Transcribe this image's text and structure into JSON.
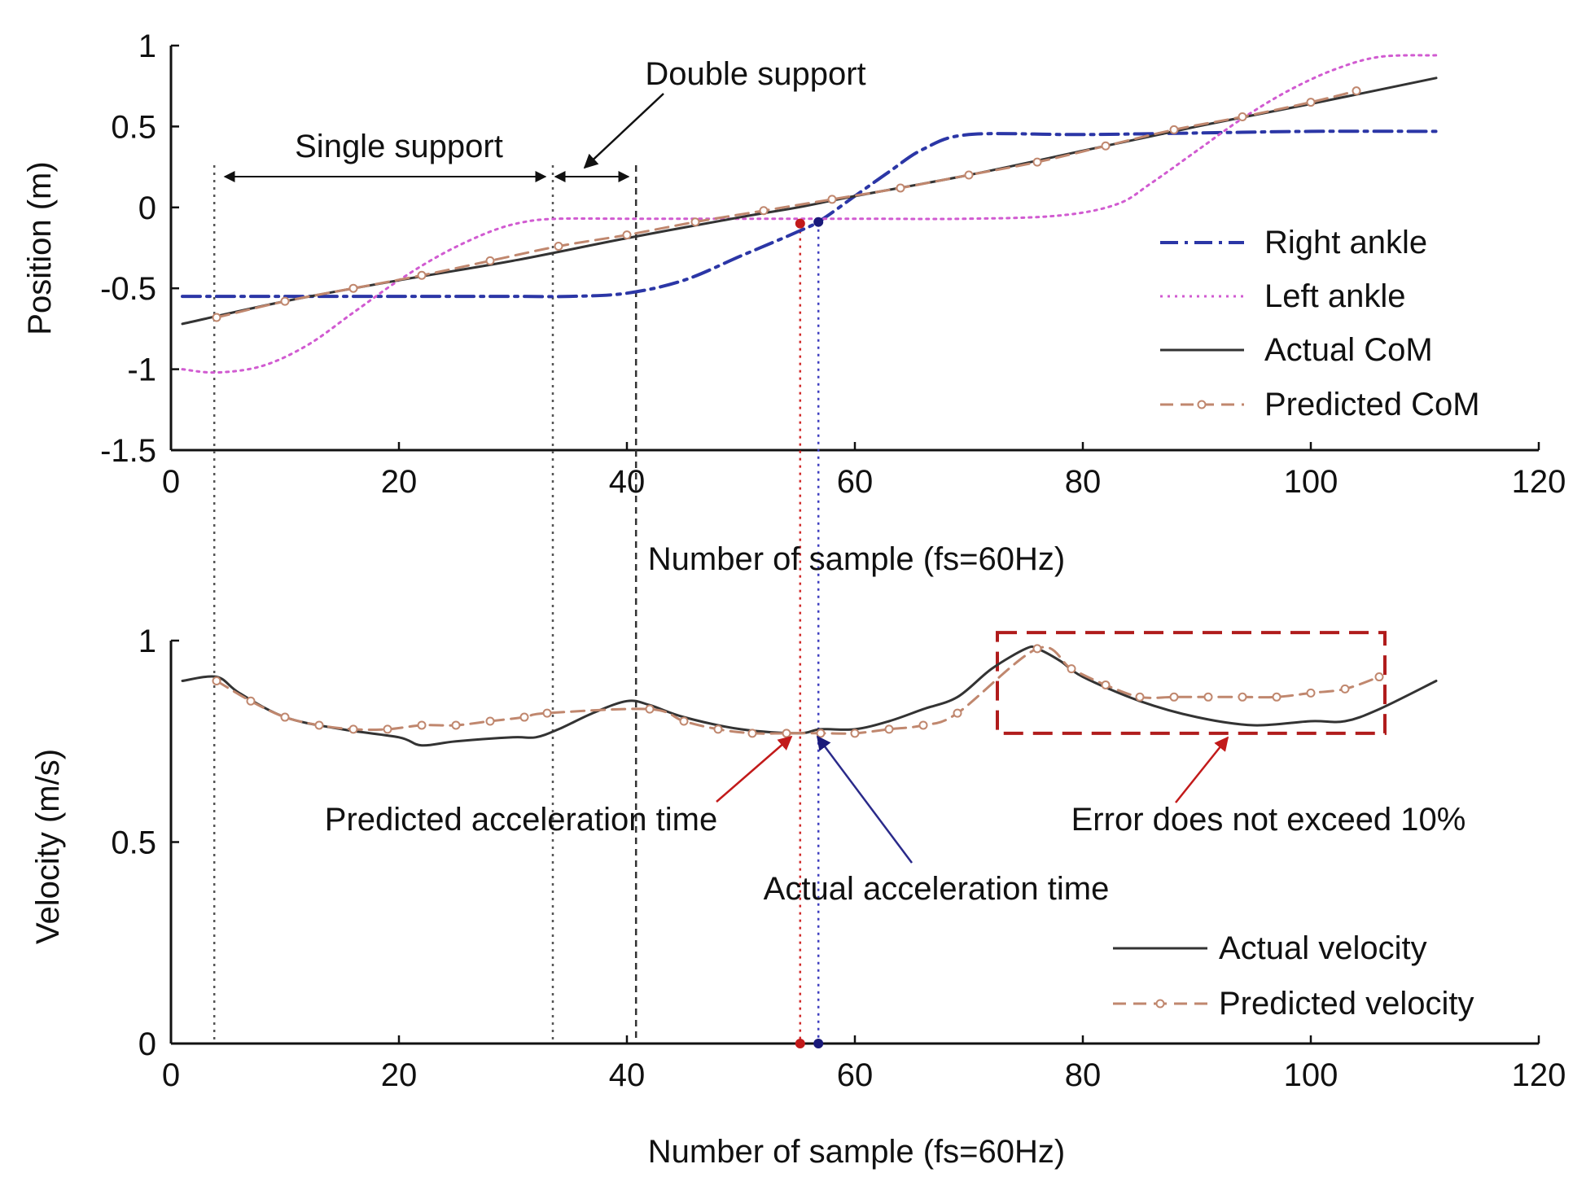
{
  "chart_data": [
    {
      "type": "line",
      "id": "position",
      "xlabel": "Number of sample (fs=60Hz)",
      "ylabel": "Position (m)",
      "xlim": [
        0,
        120
      ],
      "ylim": [
        -1.5,
        1
      ],
      "xticks": [
        "0",
        "20",
        "40",
        "60",
        "80",
        "100",
        "120"
      ],
      "yticks": [
        "1",
        "0.5",
        "0",
        "-0.5",
        "-1",
        "-1.5"
      ],
      "series": [
        {
          "name": "Right ankle",
          "style": "dashdot",
          "color": "#2b36a6",
          "x": [
            1,
            10,
            20,
            30,
            35,
            40,
            45,
            50,
            55,
            57,
            60,
            63,
            66,
            70,
            80,
            90,
            100,
            111
          ],
          "y": [
            -0.55,
            -0.55,
            -0.55,
            -0.55,
            -0.55,
            -0.53,
            -0.45,
            -0.3,
            -0.15,
            -0.08,
            0.07,
            0.22,
            0.36,
            0.45,
            0.45,
            0.46,
            0.47,
            0.47
          ]
        },
        {
          "name": "Left ankle",
          "style": "dotted",
          "color": "#d15bd1",
          "x": [
            1,
            4,
            8,
            12,
            16,
            20,
            24,
            28,
            31,
            34,
            40,
            50,
            60,
            70,
            78,
            83,
            86,
            90,
            94,
            98,
            102,
            106,
            111
          ],
          "y": [
            -1.0,
            -1.02,
            -0.98,
            -0.85,
            -0.65,
            -0.45,
            -0.28,
            -0.15,
            -0.09,
            -0.07,
            -0.07,
            -0.07,
            -0.07,
            -0.07,
            -0.05,
            0.02,
            0.15,
            0.35,
            0.55,
            0.72,
            0.85,
            0.93,
            0.94
          ]
        },
        {
          "name": "Actual CoM",
          "style": "solid",
          "color": "#333333",
          "x": [
            1,
            10,
            20,
            30,
            40,
            50,
            55,
            60,
            70,
            80,
            90,
            100,
            111
          ],
          "y": [
            -0.72,
            -0.58,
            -0.45,
            -0.33,
            -0.19,
            -0.06,
            0.0,
            0.07,
            0.2,
            0.35,
            0.5,
            0.64,
            0.8
          ]
        },
        {
          "name": "Predicted CoM",
          "style": "dashed-marker",
          "color": "#c0876e",
          "x": [
            4,
            10,
            16,
            22,
            28,
            34,
            40,
            46,
            52,
            58,
            64,
            70,
            76,
            82,
            88,
            94,
            100,
            104
          ],
          "y": [
            -0.68,
            -0.58,
            -0.5,
            -0.42,
            -0.33,
            -0.24,
            -0.17,
            -0.09,
            -0.02,
            0.05,
            0.12,
            0.2,
            0.28,
            0.38,
            0.48,
            0.56,
            0.65,
            0.72
          ]
        }
      ],
      "vlines": [
        {
          "x": 3.8,
          "color": "#555555",
          "style": "dotted",
          "extends": false
        },
        {
          "x": 33.5,
          "color": "#555555",
          "style": "dotted",
          "extends": false
        },
        {
          "x": 40.8,
          "color": "#333333",
          "style": "dashed",
          "extends": false
        },
        {
          "x": 55.2,
          "color": "#d12a2a",
          "style": "dotted",
          "extends": true
        },
        {
          "x": 56.8,
          "color": "#4040c0",
          "style": "dotted",
          "extends": true
        }
      ],
      "markers": [
        {
          "x": 55.2,
          "y": -0.1,
          "color": "#c21a1a"
        },
        {
          "x": 56.8,
          "y": -0.09,
          "color": "#1a1a7a"
        }
      ],
      "annotations": {
        "single_support": "Single support",
        "double_support": "Double support"
      },
      "legend": {
        "position": "lower-right",
        "entries": [
          "Right ankle",
          "Left ankle",
          "Actual CoM",
          "Predicted CoM"
        ]
      }
    },
    {
      "type": "line",
      "id": "velocity",
      "xlabel": "Number of sample (fs=60Hz)",
      "ylabel": "Velocity (m/s)",
      "xlim": [
        0,
        120
      ],
      "ylim": [
        0,
        1
      ],
      "xticks": [
        "0",
        "20",
        "40",
        "60",
        "80",
        "100",
        "120"
      ],
      "yticks": [
        "1",
        "0.5",
        "0"
      ],
      "series": [
        {
          "name": "Actual velocity",
          "style": "solid",
          "color": "#333333",
          "x": [
            1,
            4,
            6,
            10,
            15,
            20,
            22,
            25,
            30,
            32,
            34,
            37,
            40,
            42,
            45,
            50,
            55,
            57,
            60,
            63,
            66,
            69,
            72,
            75,
            76,
            78,
            80,
            85,
            90,
            95,
            100,
            103,
            106,
            111
          ],
          "y": [
            0.9,
            0.91,
            0.87,
            0.81,
            0.78,
            0.76,
            0.74,
            0.75,
            0.76,
            0.76,
            0.78,
            0.82,
            0.85,
            0.84,
            0.81,
            0.78,
            0.77,
            0.78,
            0.78,
            0.8,
            0.83,
            0.86,
            0.93,
            0.98,
            0.98,
            0.95,
            0.91,
            0.85,
            0.81,
            0.79,
            0.8,
            0.8,
            0.83,
            0.9
          ]
        },
        {
          "name": "Predicted velocity",
          "style": "dashed-marker",
          "color": "#c0876e",
          "x": [
            4,
            7,
            10,
            13,
            16,
            19,
            22,
            25,
            28,
            31,
            33,
            42,
            45,
            48,
            51,
            54,
            57,
            60,
            63,
            66,
            69,
            76,
            79,
            82,
            85,
            88,
            91,
            94,
            97,
            100,
            103,
            106
          ],
          "y": [
            0.9,
            0.85,
            0.81,
            0.79,
            0.78,
            0.78,
            0.79,
            0.79,
            0.8,
            0.81,
            0.82,
            0.83,
            0.8,
            0.78,
            0.77,
            0.77,
            0.77,
            0.77,
            0.78,
            0.79,
            0.82,
            0.98,
            0.93,
            0.89,
            0.86,
            0.86,
            0.86,
            0.86,
            0.86,
            0.87,
            0.88,
            0.91
          ]
        }
      ],
      "vlines": [
        {
          "x": 3.8,
          "color": "#555555",
          "style": "dotted",
          "extends": true
        },
        {
          "x": 33.5,
          "color": "#555555",
          "style": "dotted",
          "extends": true
        },
        {
          "x": 40.8,
          "color": "#333333",
          "style": "dashed",
          "extends": true
        },
        {
          "x": 55.2,
          "color": "#d12a2a",
          "style": "dotted",
          "extends": false
        },
        {
          "x": 56.8,
          "color": "#4040c0",
          "style": "dotted",
          "extends": false
        }
      ],
      "markers": [
        {
          "x": 55.2,
          "y": 0,
          "color": "#c21a1a"
        },
        {
          "x": 56.8,
          "y": 0,
          "color": "#1a1a7a"
        }
      ],
      "error_box": {
        "x0": 72.5,
        "x1": 106.5,
        "y0": 0.77,
        "y1": 1.02,
        "color": "#b01c1c"
      },
      "annotations": {
        "predicted_accel": "Predicted acceleration time",
        "actual_accel": "Actual acceleration time",
        "error": "Error does not exceed 10%"
      },
      "legend": {
        "position": "lower-right",
        "entries": [
          "Actual velocity",
          "Predicted velocity"
        ]
      }
    }
  ]
}
